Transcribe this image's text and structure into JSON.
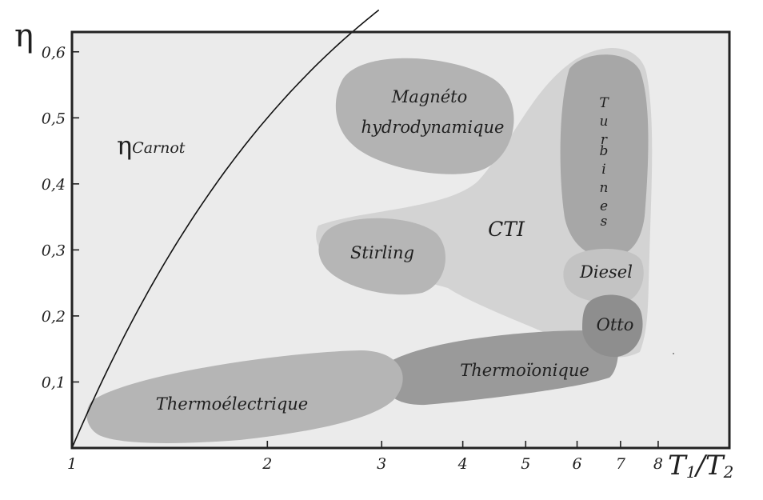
{
  "chart_data": {
    "type": "diagram",
    "title": "",
    "x_axis": {
      "label": "T₁/T₂",
      "label_main": "T",
      "label_sub1": "1",
      "label_sub2": "2",
      "scale": "log",
      "range": [
        1,
        10.3
      ],
      "ticks": [
        1,
        2,
        3,
        4,
        5,
        6,
        7,
        8
      ],
      "tick_labels": [
        "1",
        "2",
        "3",
        "4",
        "5",
        "6",
        "7",
        "8"
      ]
    },
    "y_axis": {
      "label": "η",
      "range": [
        0,
        0.63
      ],
      "ticks": [
        0.1,
        0.2,
        0.3,
        0.4,
        0.5,
        0.6
      ],
      "tick_labels": [
        "0,1",
        "0,2",
        "0,3",
        "0,4",
        "0,5",
        "0,6"
      ]
    },
    "series": [
      {
        "name": "ηCarnot",
        "label_symbol": "η",
        "label_sub": "Carnot",
        "type": "line",
        "formula": "1 - 1/x",
        "x": [
          1,
          1.1,
          1.25,
          1.5,
          1.75,
          2,
          2.25,
          2.5,
          2.75,
          2.97
        ],
        "y": [
          0,
          0.091,
          0.2,
          0.333,
          0.429,
          0.5,
          0.556,
          0.6,
          0.636,
          0.663
        ]
      }
    ],
    "regions": [
      {
        "label": "CTI",
        "shade": "light",
        "color": "#d3d3d3"
      },
      {
        "label": "Magnéto hydrodynamique",
        "lines": [
          "Magnéto",
          "hydrodynamique"
        ],
        "shade": "medium",
        "color": "#b3b3b3"
      },
      {
        "label": "Turbines",
        "letters": [
          "T",
          "u",
          "r",
          "b",
          "i",
          "n",
          "e",
          "s"
        ],
        "shade": "medium",
        "color": "#a7a7a7"
      },
      {
        "label": "Stirling",
        "shade": "medium",
        "color": "#b6b6b6"
      },
      {
        "label": "Diesel",
        "shade": "medium",
        "color": "#c3c3c3"
      },
      {
        "label": "Otto",
        "shade": "dark",
        "color": "#8e8e8e"
      },
      {
        "label": "Thermoïonique",
        "shade": "dark",
        "color": "#9a9a9a"
      },
      {
        "label": "Thermoélectrique",
        "shade": "medium",
        "color": "#b5b5b5"
      }
    ],
    "colors": {
      "plot_background": "#ebebeb",
      "frame": "#222222",
      "curve": "#111111"
    },
    "grid": false
  }
}
